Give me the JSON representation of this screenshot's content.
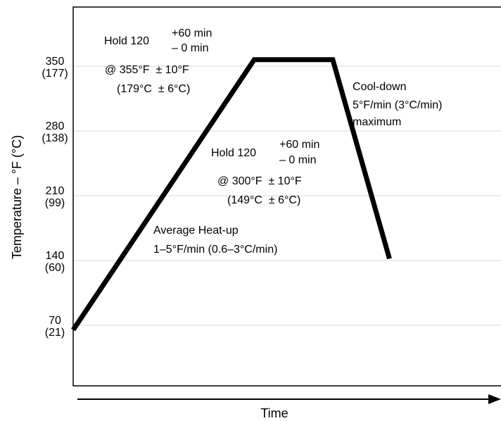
{
  "chart_data": {
    "type": "line",
    "title": "",
    "xlabel": "Time",
    "ylabel": "Temperature – °F (°C)",
    "x_range": [
      0,
      100
    ],
    "ylim": [
      0,
      420
    ],
    "grid": true,
    "y_ticks": [
      {
        "value": 70,
        "f": "70",
        "c": "(21)"
      },
      {
        "value": 140,
        "f": "140",
        "c": "(60)"
      },
      {
        "value": 210,
        "f": "210",
        "c": "(99)"
      },
      {
        "value": 280,
        "f": "280",
        "c": "(138)"
      },
      {
        "value": 350,
        "f": "350",
        "c": "(177)"
      }
    ],
    "series": [
      {
        "x": [
          0,
          41.5,
          59.5,
          72.5
        ],
        "y": [
          65,
          357,
          357,
          142
        ]
      }
    ],
    "annotations": {
      "hold_upper": {
        "hold": "Hold 120",
        "plus": "+60 min",
        "minus": "– 0 min",
        "temp_f": "@ 355°F  ± 10°F",
        "temp_c": "(179°C  ± 6°C)"
      },
      "hold_lower": {
        "hold": "Hold 120",
        "plus": "+60 min",
        "minus": "– 0 min",
        "temp_f": "@ 300°F  ± 10°F",
        "temp_c": "(149°C  ± 6°C)"
      },
      "heatup": {
        "line1": "Average Heat-up",
        "line2": "1–5°F/min (0.6–3°C/min)"
      },
      "cooldown": {
        "line1": "Cool-down",
        "line2": "5°F/min (3°C/min)",
        "line3": "maximum"
      }
    }
  }
}
